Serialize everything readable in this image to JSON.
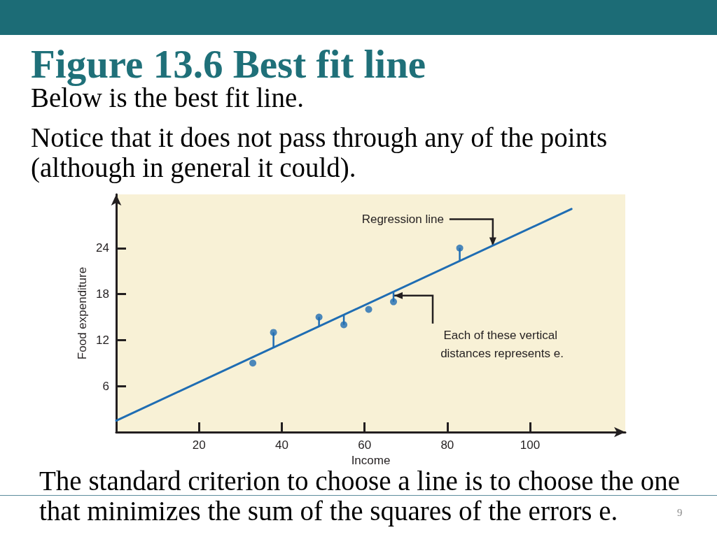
{
  "chart_data": {
    "type": "scatter",
    "title": "Figure 13.6 Best fit line",
    "subtitle": "Below is the best fit line.",
    "xlabel": "Income",
    "ylabel": "Food expenditure",
    "xlim": [
      0,
      123
    ],
    "ylim": [
      0,
      31
    ],
    "xticks": [
      20,
      40,
      60,
      80,
      100
    ],
    "yticks": [
      6,
      12,
      18,
      24
    ],
    "marker": "circle",
    "series": [
      {
        "color": "#1f6db3",
        "x": [
          33,
          38,
          49,
          55,
          61,
          67,
          83
        ],
        "values": [
          9,
          13,
          15,
          14,
          16,
          17,
          24
        ],
        "errors": [
          null,
          [
            11.1,
            13
          ],
          [
            13.8,
            15
          ],
          [
            14,
            15.3
          ],
          null,
          [
            17,
            18.3
          ],
          [
            22.4,
            24
          ]
        ]
      },
      {
        "type": "line",
        "color": "#1f6db3",
        "x": [
          0,
          110
        ],
        "values": [
          1.5,
          29.1
        ],
        "marker": "none"
      }
    ],
    "annotations": [
      {
        "text": "Regression line",
        "x": 91,
        "y": 24.3
      },
      {
        "text": "Each of these vertical distances represents e.",
        "x": 67,
        "y": 17.8
      },
      "Notice that it does not pass through any of the points (although in general it could).",
      "The standard criterion to choose a line is to choose the one that minimizes the sum of the squares of the errors e.",
      "9"
    ]
  }
}
